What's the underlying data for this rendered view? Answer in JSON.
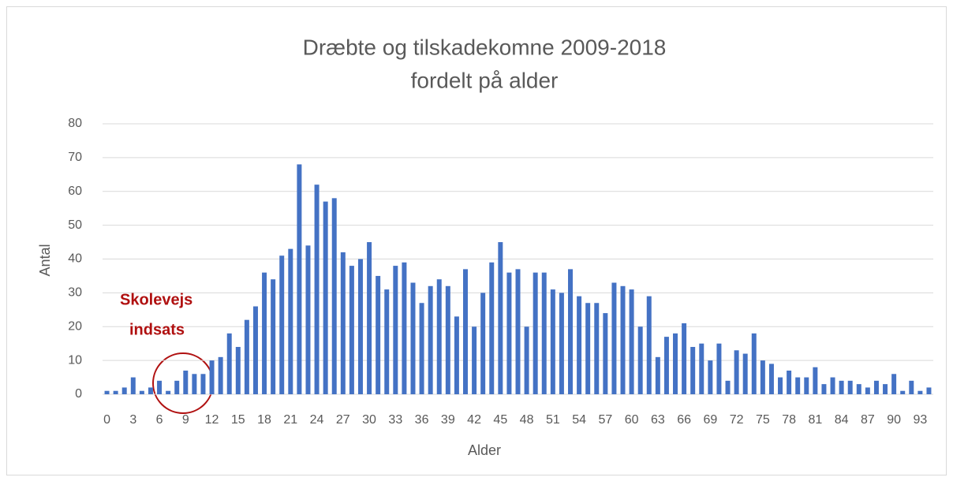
{
  "chart_data": {
    "type": "bar",
    "title": [
      "Dræbte og tilskadekomne 2009-2018",
      "fordelt på alder"
    ],
    "x_label": "Alder",
    "y_label": "Antal",
    "annotation": [
      "Skolevejs",
      "indsats"
    ],
    "annotation_color": "#b01010",
    "categories": [
      "0",
      null,
      null,
      "3",
      null,
      null,
      "6",
      null,
      null,
      "9",
      null,
      null,
      "12",
      null,
      null,
      "15",
      null,
      null,
      "18",
      null,
      null,
      "21",
      null,
      null,
      "24",
      null,
      null,
      "27",
      null,
      null,
      "30",
      null,
      null,
      "33",
      null,
      null,
      "36",
      null,
      null,
      "39",
      null,
      null,
      "42",
      null,
      null,
      "45",
      null,
      null,
      "48",
      null,
      null,
      "51",
      null,
      null,
      "54",
      null,
      null,
      "57",
      null,
      null,
      "60",
      null,
      null,
      "63",
      null,
      null,
      "66",
      null,
      null,
      "69",
      null,
      null,
      "72",
      null,
      null,
      "75",
      null,
      null,
      "78",
      null,
      null,
      "81",
      null,
      null,
      "84",
      null,
      null,
      "87",
      null,
      null,
      "90",
      null,
      null,
      "93",
      null
    ],
    "values": [
      1,
      1,
      2,
      5,
      1,
      2,
      4,
      1,
      4,
      7,
      6,
      6,
      10,
      11,
      18,
      14,
      22,
      26,
      36,
      34,
      41,
      43,
      68,
      44,
      62,
      57,
      58,
      42,
      38,
      40,
      45,
      35,
      31,
      38,
      39,
      33,
      27,
      32,
      34,
      32,
      23,
      37,
      20,
      30,
      39,
      45,
      36,
      37,
      20,
      36,
      36,
      31,
      30,
      37,
      29,
      27,
      27,
      24,
      33,
      32,
      31,
      20,
      29,
      11,
      17,
      18,
      21,
      14,
      15,
      10,
      15,
      4,
      13,
      12,
      18,
      10,
      9,
      5,
      7,
      5,
      5,
      8,
      3,
      5,
      4,
      4,
      3,
      2,
      4,
      3,
      6,
      1,
      4,
      1,
      2
    ],
    "color": "#4472c4",
    "ylim": [
      0,
      80
    ],
    "yticks": [
      0,
      10,
      20,
      30,
      40,
      50,
      60,
      70,
      80
    ],
    "grid": true
  }
}
